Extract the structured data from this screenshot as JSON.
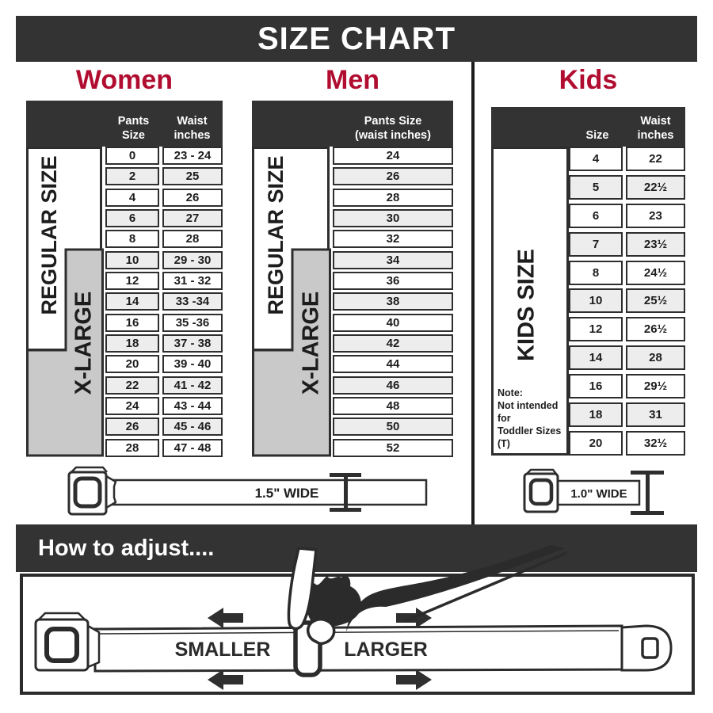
{
  "title": "SIZE CHART",
  "headings": {
    "women": "Women",
    "men": "Men",
    "kids": "Kids"
  },
  "women": {
    "col1_header": "Pants Size",
    "col2_header": [
      "Waist",
      "inches"
    ],
    "side_labels": {
      "regular": "REGULAR SIZE",
      "xlarge": "X-LARGE"
    }
  },
  "men": {
    "header": [
      "Pants Size",
      "(waist inches)"
    ],
    "side_labels": {
      "regular": "REGULAR SIZE",
      "xlarge": "X-LARGE"
    }
  },
  "kids": {
    "col1_header": "Size",
    "col2_header": [
      "Waist",
      "inches"
    ],
    "side_label": "KIDS SIZE",
    "note": [
      "Note:",
      "Not intended for",
      "Toddler Sizes (T)"
    ]
  },
  "belts": {
    "adult": "1.5\" WIDE",
    "kids": "1.0\" WIDE"
  },
  "how_to": {
    "heading": "How to adjust....",
    "smaller": "SMALLER",
    "larger": "LARGER"
  },
  "colors": {
    "bar_dark": "#333333",
    "heading_red": "#b00d30",
    "xlarge_gray": "#c9c9c9",
    "row_alt": "#ededed",
    "border_dark": "#2e2e2e"
  },
  "chart_data": [
    {
      "type": "table",
      "title": "Women",
      "columns": [
        "Pants Size",
        "Waist inches"
      ],
      "size_groups": [
        "REGULAR SIZE",
        "X-LARGE"
      ],
      "rows": [
        [
          "0",
          "23 - 24"
        ],
        [
          "2",
          "25"
        ],
        [
          "4",
          "26"
        ],
        [
          "6",
          "27"
        ],
        [
          "8",
          "28"
        ],
        [
          "10",
          "29 - 30"
        ],
        [
          "12",
          "31 - 32"
        ],
        [
          "14",
          "33 -34"
        ],
        [
          "16",
          "35 -36"
        ],
        [
          "18",
          "37 - 38"
        ],
        [
          "20",
          "39 - 40"
        ],
        [
          "22",
          "41 - 42"
        ],
        [
          "24",
          "43 - 44"
        ],
        [
          "26",
          "45 - 46"
        ],
        [
          "28",
          "47 - 48"
        ]
      ]
    },
    {
      "type": "table",
      "title": "Men",
      "columns": [
        "Pants Size (waist inches)"
      ],
      "size_groups": [
        "REGULAR SIZE",
        "X-LARGE"
      ],
      "rows": [
        [
          "24"
        ],
        [
          "26"
        ],
        [
          "28"
        ],
        [
          "30"
        ],
        [
          "32"
        ],
        [
          "34"
        ],
        [
          "36"
        ],
        [
          "38"
        ],
        [
          "40"
        ],
        [
          "42"
        ],
        [
          "44"
        ],
        [
          "46"
        ],
        [
          "48"
        ],
        [
          "50"
        ],
        [
          "52"
        ]
      ]
    },
    {
      "type": "table",
      "title": "Kids",
      "columns": [
        "Size",
        "Waist inches"
      ],
      "size_groups": [
        "KIDS SIZE"
      ],
      "rows": [
        [
          "4",
          "22"
        ],
        [
          "5",
          "22½"
        ],
        [
          "6",
          "23"
        ],
        [
          "7",
          "23½"
        ],
        [
          "8",
          "24½"
        ],
        [
          "10",
          "25½"
        ],
        [
          "12",
          "26½"
        ],
        [
          "14",
          "28"
        ],
        [
          "16",
          "29½"
        ],
        [
          "18",
          "31"
        ],
        [
          "20",
          "32½"
        ]
      ]
    }
  ]
}
